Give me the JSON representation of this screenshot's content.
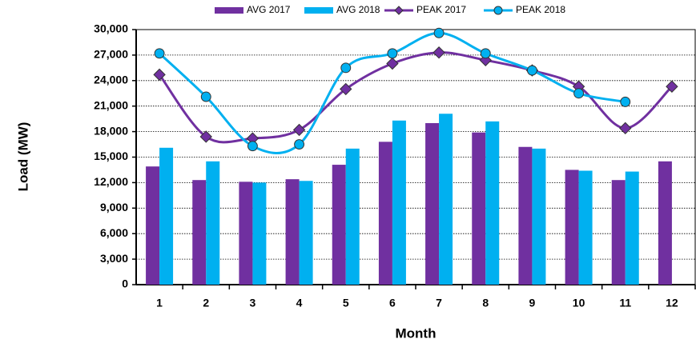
{
  "chart_data": {
    "type": "bar_line",
    "x_label": "Month",
    "y_label": "Load (MW)",
    "categories": [
      "1",
      "2",
      "3",
      "4",
      "5",
      "6",
      "7",
      "8",
      "9",
      "10",
      "11",
      "12"
    ],
    "series": [
      {
        "name": "AVG 2017",
        "kind": "bar",
        "color": "#7030a0",
        "values": [
          13900,
          12300,
          12100,
          12400,
          14100,
          16800,
          19000,
          17900,
          16200,
          13500,
          12300,
          14500
        ]
      },
      {
        "name": "AVG 2018",
        "kind": "bar",
        "color": "#00b0f0",
        "values": [
          16100,
          14500,
          12000,
          12200,
          16000,
          19300,
          20100,
          19200,
          16000,
          13400,
          13300,
          null
        ]
      },
      {
        "name": "PEAK 2017",
        "kind": "line",
        "marker": "diamond",
        "color": "#7030a0",
        "values": [
          24700,
          17400,
          17200,
          18200,
          23000,
          26000,
          27300,
          26400,
          25200,
          23300,
          18400,
          23300
        ]
      },
      {
        "name": "PEAK 2018",
        "kind": "line",
        "marker": "circle",
        "color": "#00b0f0",
        "values": [
          27200,
          22100,
          16300,
          16500,
          25500,
          27200,
          29600,
          27200,
          25200,
          22500,
          21500,
          null
        ]
      }
    ],
    "ylim": [
      0,
      30000
    ],
    "yticks": [
      0,
      {
        "value": 3000,
        "label": "3,000"
      },
      {
        "value": 6000,
        "label": "6,000"
      },
      {
        "value": 9000,
        "label": "9,000"
      },
      {
        "value": 12000,
        "label": "12,000"
      },
      {
        "value": 15000,
        "label": "15,000"
      },
      {
        "value": 18000,
        "label": "18,000"
      },
      {
        "value": 21000,
        "label": "21,000"
      },
      {
        "value": 24000,
        "label": "24,000"
      },
      {
        "value": 27000,
        "label": "27,000"
      },
      {
        "value": 30000,
        "label": "30,000"
      }
    ],
    "grid": true,
    "legend": "top"
  }
}
